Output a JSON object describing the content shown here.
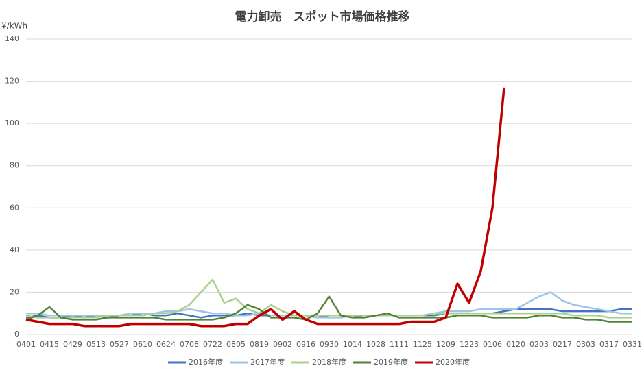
{
  "chart_data": {
    "type": "line",
    "title": "電力卸売　スポット市場価格推移",
    "y_label": "¥/kWh",
    "categories": [
      "0401",
      null,
      "0415",
      null,
      "0429",
      null,
      "0513",
      null,
      "0527",
      null,
      "0610",
      null,
      "0624",
      null,
      "0708",
      null,
      "0722",
      null,
      "0805",
      null,
      "0819",
      null,
      "0902",
      null,
      "0916",
      null,
      "0930",
      null,
      "1014",
      null,
      "1028",
      null,
      "1111",
      null,
      "1125",
      null,
      "1209",
      null,
      "1223",
      null,
      "0106",
      null,
      "0120",
      null,
      "0203",
      null,
      "0217",
      null,
      "0303",
      null,
      "0317",
      null,
      "0331"
    ],
    "series": [
      {
        "name": "2016年度",
        "color": "#4472c4",
        "values": [
          8,
          9,
          8,
          8,
          9,
          8,
          9,
          8,
          9,
          9,
          10,
          9,
          9,
          10,
          9,
          8,
          9,
          9,
          9,
          10,
          9,
          9,
          9,
          9,
          9,
          8,
          9,
          9,
          9,
          8,
          9,
          9,
          9,
          9,
          9,
          9,
          10,
          10,
          10,
          10,
          10,
          11,
          12,
          12,
          12,
          12,
          11,
          11,
          11,
          11,
          11,
          12,
          12
        ]
      },
      {
        "name": "2017年度",
        "color": "#9dc3e6",
        "values": [
          10,
          10,
          9,
          9,
          9,
          9,
          9,
          9,
          9,
          10,
          10,
          10,
          11,
          11,
          12,
          11,
          10,
          10,
          9,
          9,
          10,
          9,
          9,
          9,
          9,
          8,
          8,
          8,
          9,
          9,
          9,
          9,
          9,
          9,
          9,
          10,
          11,
          11,
          11,
          12,
          12,
          12,
          12,
          15,
          18,
          20,
          16,
          14,
          13,
          12,
          11,
          10,
          10
        ]
      },
      {
        "name": "2018年度",
        "color": "#a9d18e",
        "values": [
          9,
          8,
          8,
          8,
          8,
          8,
          8,
          9,
          9,
          9,
          9,
          10,
          10,
          11,
          14,
          20,
          26,
          15,
          17,
          12,
          10,
          14,
          11,
          9,
          9,
          9,
          9,
          9,
          9,
          9,
          9,
          9,
          9,
          9,
          9,
          10,
          10,
          10,
          10,
          10,
          10,
          10,
          10,
          10,
          10,
          10,
          10,
          9,
          9,
          9,
          8,
          8,
          8
        ]
      },
      {
        "name": "2019年度",
        "color": "#548235",
        "values": [
          7,
          9,
          13,
          8,
          7,
          7,
          7,
          8,
          8,
          8,
          8,
          8,
          7,
          7,
          7,
          7,
          7,
          8,
          10,
          14,
          12,
          8,
          8,
          8,
          7,
          10,
          18,
          9,
          8,
          8,
          9,
          10,
          8,
          8,
          8,
          8,
          8,
          9,
          9,
          9,
          8,
          8,
          8,
          8,
          9,
          9,
          8,
          8,
          7,
          7,
          6,
          6,
          6
        ]
      },
      {
        "name": "2020年度",
        "color": "#c00000",
        "values": [
          7,
          6,
          5,
          5,
          5,
          4,
          4,
          4,
          4,
          5,
          5,
          5,
          5,
          5,
          5,
          4,
          4,
          4,
          5,
          5,
          9,
          12,
          7,
          11,
          7,
          5,
          5,
          5,
          5,
          5,
          5,
          5,
          5,
          6,
          6,
          6,
          8,
          24,
          15,
          30,
          60,
          117,
          null,
          null,
          null,
          null,
          null,
          null,
          null,
          null,
          null,
          null,
          null
        ]
      }
    ],
    "ylim": [
      0,
      140
    ],
    "yticks": [
      0,
      20,
      40,
      60,
      80,
      100,
      120,
      140
    ],
    "grid": true,
    "legend": "bottom"
  }
}
